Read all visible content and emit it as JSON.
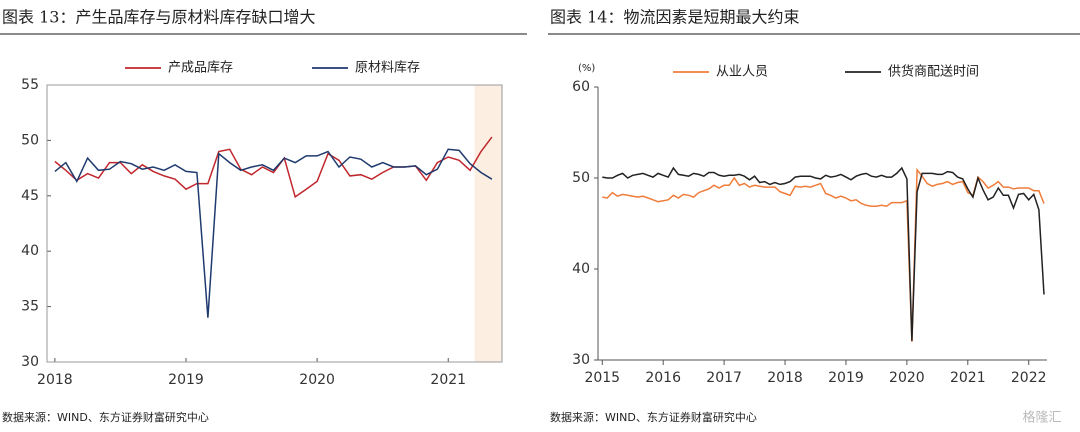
{
  "chart_data": [
    {
      "type": "line",
      "title": "图表 13：产生品库存与原材料库存缺口增大",
      "source": "数据来源：WIND、东方证券财富研究中心",
      "x": [
        2018,
        2018.083,
        2018.167,
        2018.25,
        2018.333,
        2018.417,
        2018.5,
        2018.583,
        2018.667,
        2018.75,
        2018.833,
        2018.917,
        2019,
        2019.083,
        2019.167,
        2019.25,
        2019.333,
        2019.417,
        2019.5,
        2019.583,
        2019.667,
        2019.75,
        2019.833,
        2019.917,
        2020,
        2020.083,
        2020.167,
        2020.25,
        2020.333,
        2020.417,
        2020.5,
        2020.583,
        2020.667,
        2020.75,
        2020.833,
        2020.917,
        2021,
        2021.083,
        2021.167,
        2021.25,
        2021.333
      ],
      "series": [
        {
          "name": "产成品库存",
          "color": "#c0272d",
          "values": [
            48.1,
            47.3,
            46.4,
            47.0,
            46.6,
            48.0,
            48.0,
            47.0,
            47.8,
            47.2,
            46.8,
            46.5,
            45.6,
            46.1,
            46.1,
            49.0,
            49.2,
            47.4,
            46.9,
            47.6,
            47.1,
            48.4,
            44.9,
            45.6,
            46.3,
            48.8,
            48.2,
            46.8,
            46.9,
            46.5,
            47.1,
            47.6,
            47.6,
            47.7,
            46.4,
            48.0,
            48.5,
            48.2,
            47.3,
            49.0,
            50.3
          ]
        },
        {
          "name": "原材料库存",
          "color": "#1f3a6e",
          "values": [
            47.2,
            48.0,
            46.3,
            48.4,
            47.3,
            47.4,
            48.1,
            47.9,
            47.4,
            47.6,
            47.3,
            47.8,
            47.2,
            47.1,
            34.0,
            48.8,
            48.0,
            47.3,
            47.6,
            47.8,
            47.3,
            48.4,
            48.0,
            48.6,
            48.6,
            49.0,
            47.6,
            48.5,
            48.3,
            47.6,
            48.0,
            47.6,
            47.6,
            47.7,
            46.9,
            47.4,
            49.2,
            49.1,
            47.9,
            47.1,
            46.5
          ]
        }
      ],
      "highlight": [
        2021.2,
        2021.41
      ],
      "highlight_color": "#fdeee2",
      "xlim": [
        2017.94,
        2021.41
      ],
      "xticks": [
        2018,
        2019,
        2020,
        2021
      ],
      "ylim": [
        30,
        55
      ],
      "yticks": [
        30,
        35,
        40,
        45,
        50,
        55
      ],
      "grid": false
    },
    {
      "type": "line",
      "title": "图表 14：物流因素是短期最大约束",
      "source": "数据来源：WIND、东方证券财富研究中心",
      "y_label": "(%)",
      "x": [
        2015,
        2015.083,
        2015.167,
        2015.25,
        2015.333,
        2015.417,
        2015.5,
        2015.583,
        2015.667,
        2015.75,
        2015.833,
        2015.917,
        2016,
        2016.083,
        2016.167,
        2016.25,
        2016.333,
        2016.417,
        2016.5,
        2016.583,
        2016.667,
        2016.75,
        2016.833,
        2016.917,
        2017,
        2017.083,
        2017.167,
        2017.25,
        2017.333,
        2017.417,
        2017.5,
        2017.583,
        2017.667,
        2017.75,
        2017.833,
        2017.917,
        2018,
        2018.083,
        2018.167,
        2018.25,
        2018.333,
        2018.417,
        2018.5,
        2018.583,
        2018.667,
        2018.75,
        2018.833,
        2018.917,
        2019,
        2019.083,
        2019.167,
        2019.25,
        2019.333,
        2019.417,
        2019.5,
        2019.583,
        2019.667,
        2019.75,
        2019.833,
        2019.917,
        2020,
        2020.083,
        2020.167,
        2020.25,
        2020.333,
        2020.417,
        2020.5,
        2020.583,
        2020.667,
        2020.75,
        2020.833,
        2020.917,
        2021,
        2021.083,
        2021.167,
        2021.25,
        2021.333,
        2021.417,
        2021.5,
        2021.583,
        2021.667,
        2021.75,
        2021.833,
        2021.917,
        2022,
        2022.083,
        2022.167,
        2022.25
      ],
      "series": [
        {
          "name": "从业人员",
          "color": "#f07c3a",
          "values": [
            47.9,
            47.8,
            48.4,
            48.0,
            48.2,
            48.1,
            48.0,
            47.9,
            48.0,
            47.8,
            47.6,
            47.4,
            47.5,
            47.6,
            48.1,
            47.8,
            48.2,
            48.1,
            47.9,
            48.4,
            48.6,
            48.8,
            49.2,
            48.9,
            49.2,
            49.2,
            50.0,
            49.2,
            49.4,
            49.0,
            49.2,
            49.1,
            49.0,
            49.0,
            49.0,
            48.5,
            48.3,
            48.1,
            49.1,
            49.0,
            49.1,
            49.0,
            49.2,
            49.4,
            48.3,
            48.1,
            47.8,
            48.0,
            47.8,
            47.5,
            47.6,
            47.2,
            47.0,
            46.9,
            46.9,
            47.0,
            46.9,
            47.3,
            47.3,
            47.3,
            47.5,
            32.0,
            50.9,
            50.2,
            49.4,
            49.1,
            49.3,
            49.4,
            49.6,
            49.3,
            49.5,
            49.6,
            48.4,
            48.1,
            50.1,
            49.6,
            48.9,
            49.2,
            49.6,
            49.0,
            49.0,
            48.8,
            48.9,
            48.9,
            48.9,
            48.6,
            48.6,
            47.2
          ]
        },
        {
          "name": "供货商配送时间",
          "color": "#222222",
          "values": [
            50.1,
            50.0,
            50.0,
            50.3,
            50.5,
            50.0,
            50.3,
            50.4,
            50.5,
            50.3,
            50.1,
            50.5,
            50.3,
            50.1,
            51.1,
            50.4,
            50.3,
            50.2,
            50.5,
            50.4,
            50.2,
            50.6,
            50.6,
            50.3,
            50.2,
            50.3,
            50.3,
            50.4,
            50.2,
            49.8,
            50.2,
            49.5,
            49.6,
            49.3,
            49.5,
            49.3,
            49.4,
            49.6,
            50.1,
            50.2,
            50.2,
            50.2,
            50.0,
            49.9,
            50.3,
            50.1,
            50.2,
            50.4,
            50.1,
            49.8,
            50.2,
            50.4,
            50.5,
            50.2,
            50.1,
            50.3,
            50.1,
            50.1,
            50.5,
            51.1,
            49.9,
            32.1,
            48.5,
            50.5,
            50.5,
            50.5,
            50.4,
            50.4,
            50.7,
            50.6,
            50.1,
            49.9,
            48.8,
            47.9,
            50.0,
            48.7,
            47.6,
            47.9,
            48.9,
            48.1,
            48.1,
            46.7,
            48.2,
            48.3,
            47.6,
            48.2,
            46.5,
            37.2
          ]
        }
      ],
      "xlim": [
        2014.93,
        2022.3
      ],
      "xticks": [
        2015,
        2016,
        2017,
        2018,
        2019,
        2020,
        2021,
        2022
      ],
      "ylim": [
        30,
        60
      ],
      "yticks": [
        30,
        40,
        50,
        60
      ],
      "grid": false
    }
  ],
  "watermark": "格隆汇"
}
